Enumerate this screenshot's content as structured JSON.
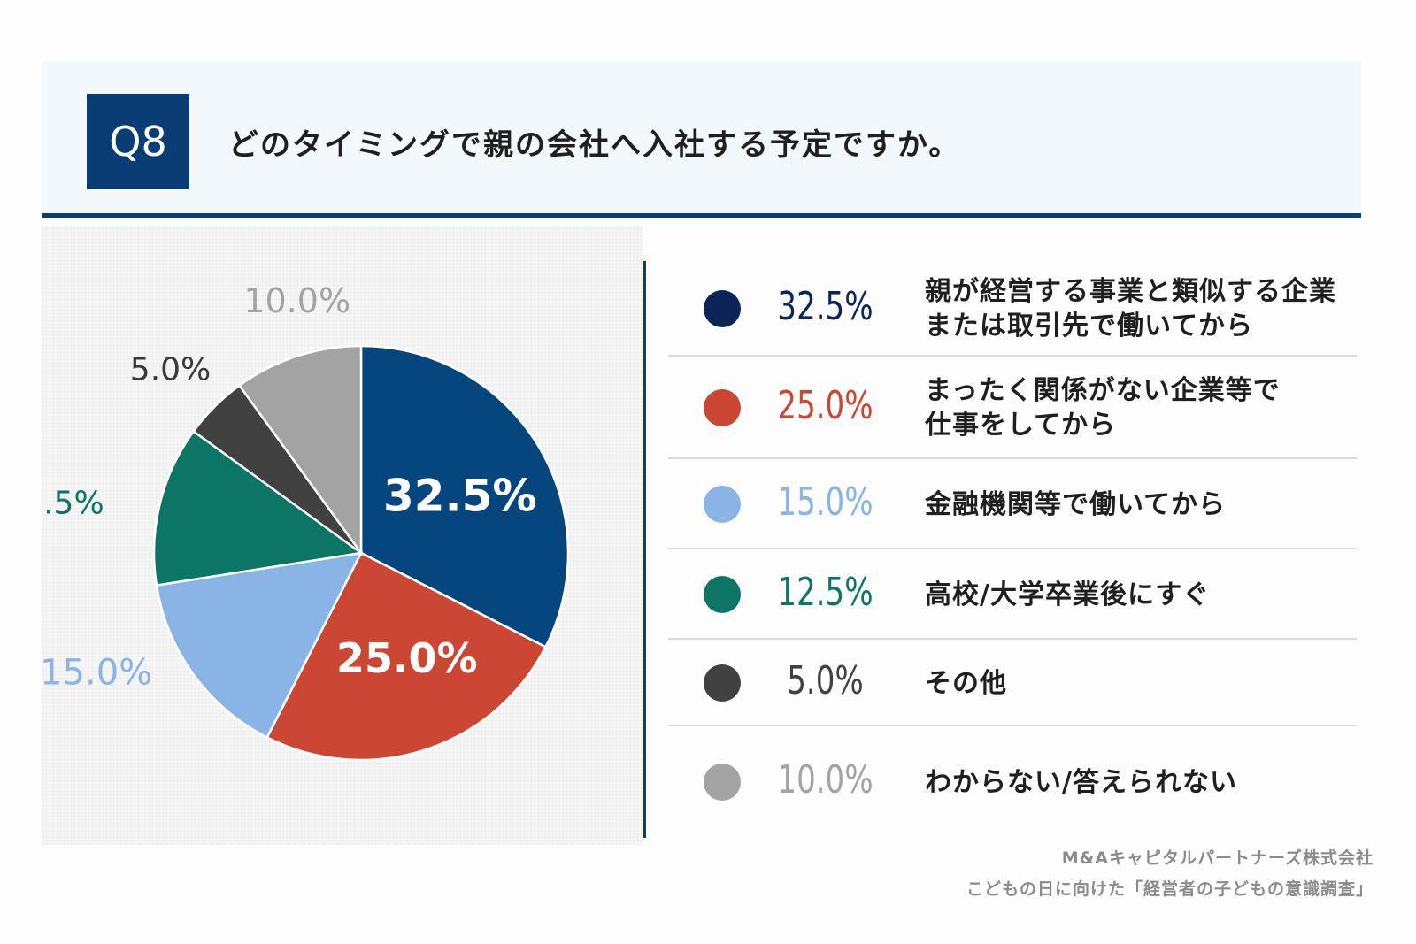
{
  "header": {
    "badge": "Q8",
    "question": "どのタイミングで親の会社へ入社する予定ですか。"
  },
  "chart_data": {
    "type": "pie",
    "slices": [
      {
        "label": "親が経営する事業と類似する企業\nまたは取引先で働いてから",
        "value": 32.5,
        "display": "32.5%",
        "color": "#05467f",
        "legend_dot": "#0c2458",
        "label_color": "#ffffff"
      },
      {
        "label": "まったく関係がない企業等で\n仕事をしてから",
        "value": 25.0,
        "display": "25.0%",
        "color": "#cc4634",
        "legend_dot": "#cc4634",
        "label_color": "#ffffff"
      },
      {
        "label": "金融機関等で働いてから",
        "value": 15.0,
        "display": "15.0%",
        "color": "#8ab4e6",
        "legend_dot": "#8ab4e6",
        "label_color": "#8ab4e6"
      },
      {
        "label": "高校/大学卒業後にすぐ",
        "value": 12.5,
        "display": "12.5%",
        "color": "#0c7565",
        "legend_dot": "#0c7565",
        "label_color": "#0c7565"
      },
      {
        "label": "その他",
        "value": 5.0,
        "display": "5.0%",
        "color": "#414141",
        "legend_dot": "#414141",
        "label_color": "#3a3a3a"
      },
      {
        "label": "わからない/答えられない",
        "value": 10.0,
        "display": "10.0%",
        "color": "#a3a3a3",
        "legend_dot": "#a3a3a3",
        "label_color": "#a3a3a3"
      }
    ],
    "start_angle": "12 o'clock",
    "direction": "clockwise",
    "legend_placement": "right"
  },
  "footer": {
    "company": "M&Aキャピタルパートナーズ株式会社",
    "survey": "こどもの日に向けた「経営者の子どもの意識調査」"
  }
}
